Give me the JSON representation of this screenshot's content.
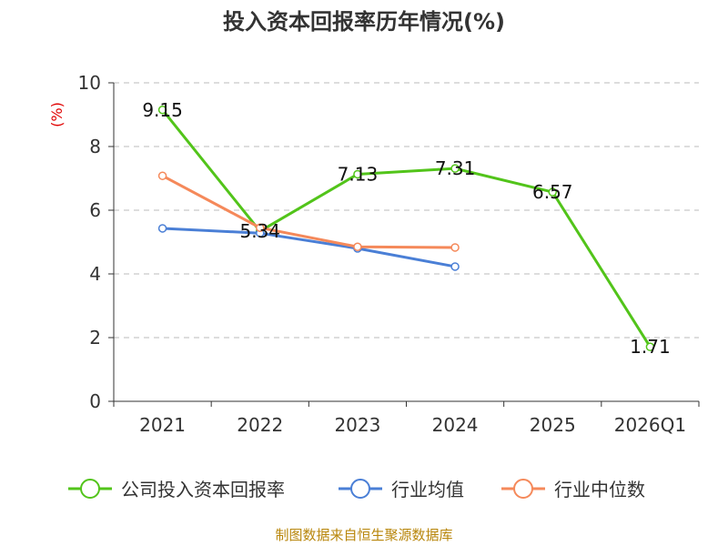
{
  "chart_data": {
    "type": "line",
    "title": "投入资本回报率历年情况(%)",
    "ylabel": "(%)",
    "xlabel": "",
    "categories": [
      "2021",
      "2022",
      "2023",
      "2024",
      "2025",
      "2026Q1"
    ],
    "ylim": [
      0,
      10
    ],
    "yticks": [
      0,
      2,
      4,
      6,
      8,
      10
    ],
    "grid": true,
    "legend_position": "bottom",
    "series": [
      {
        "name": "公司投入资本回报率",
        "color": "#52c41a",
        "values": [
          9.15,
          5.34,
          7.13,
          7.31,
          6.57,
          1.71
        ],
        "labels": [
          "9.15",
          "5.34",
          "7.13",
          "7.31",
          "6.57",
          "1.71"
        ]
      },
      {
        "name": "行业均值",
        "color": "#4a7fd6",
        "values": [
          5.43,
          5.28,
          4.8,
          4.23,
          null,
          null
        ],
        "labels": []
      },
      {
        "name": "行业中位数",
        "color": "#f5895a",
        "values": [
          7.08,
          5.45,
          4.85,
          4.83,
          null,
          null
        ],
        "labels": []
      }
    ],
    "source": "制图数据来自恒生聚源数据库"
  }
}
